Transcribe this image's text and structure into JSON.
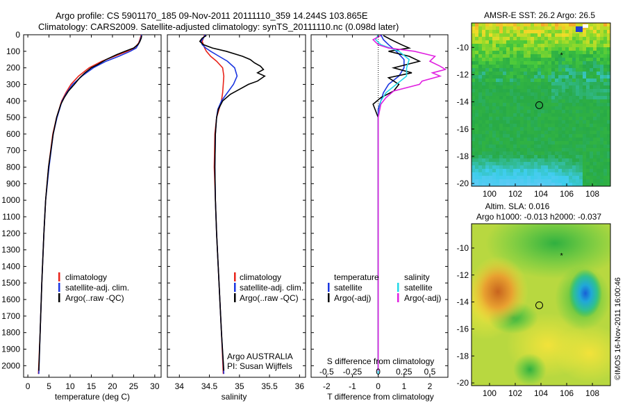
{
  "title": {
    "line1": "Argo profile: CS 5901170_185 09-Nov-2011 20111110_359 14.244S 103.865E",
    "line2": "Climatology: CARS2009. Satellite-adjusted climatology: synTS_20111110.nc (0.098d later)"
  },
  "colors": {
    "climatology": "#e8231a",
    "satellite": "#1a35e0",
    "argo": "#000000",
    "salinity_sat": "#22d8e8",
    "salinity_argo": "#e020e0"
  },
  "chart_data": [
    {
      "type": "line",
      "id": "temperature-profile",
      "xlabel": "temperature (deg C)",
      "ylabel": "",
      "xlim": [
        -1,
        31.5
      ],
      "ylim": [
        2070,
        0
      ],
      "xticks": [
        0,
        5,
        10,
        15,
        20,
        25,
        30
      ],
      "yticks": [
        0,
        100,
        200,
        300,
        400,
        500,
        600,
        700,
        800,
        900,
        1000,
        1100,
        1200,
        1300,
        1400,
        1500,
        1600,
        1700,
        1800,
        1900,
        2000
      ],
      "legend": {
        "placement": "lower-center",
        "entries": [
          "climatology",
          "satellite-adj. clim.",
          "Argo(..raw -QC)"
        ]
      },
      "series": [
        {
          "name": "climatology",
          "depth": [
            0,
            20,
            50,
            80,
            100,
            130,
            160,
            200,
            250,
            300,
            350,
            400,
            500,
            600,
            800,
            1000,
            1200,
            1500,
            1800,
            2050
          ],
          "values": [
            26.8,
            26.6,
            26.2,
            25.2,
            23.5,
            20.5,
            17.5,
            14.5,
            12.0,
            10.2,
            9.0,
            8.0,
            6.8,
            5.9,
            4.9,
            4.2,
            3.8,
            3.3,
            2.9,
            2.5
          ]
        },
        {
          "name": "satellite-adj. clim.",
          "depth": [
            0,
            20,
            50,
            80,
            100,
            130,
            160,
            200,
            250,
            300,
            350,
            400,
            500,
            600,
            800,
            1000,
            1200,
            1500,
            1800,
            2050
          ],
          "values": [
            26.9,
            26.7,
            26.3,
            25.6,
            24.2,
            21.5,
            18.5,
            15.5,
            12.8,
            10.6,
            9.2,
            8.1,
            6.9,
            6.0,
            5.0,
            4.2,
            3.8,
            3.3,
            2.9,
            2.6
          ]
        },
        {
          "name": "Argo(..raw -QC)",
          "depth": [
            5,
            20,
            40,
            60,
            80,
            100,
            120,
            150,
            180,
            200,
            230,
            260,
            300,
            340,
            380,
            420,
            500,
            600,
            800,
            1000,
            1200,
            1500,
            1800,
            2030
          ],
          "values": [
            26.9,
            26.8,
            26.5,
            26.0,
            25.0,
            23.0,
            21.0,
            18.5,
            16.5,
            15.0,
            13.5,
            12.3,
            11.0,
            9.6,
            8.6,
            7.8,
            6.8,
            6.0,
            4.9,
            4.2,
            3.8,
            3.3,
            2.9,
            2.6
          ]
        }
      ]
    },
    {
      "type": "line",
      "id": "salinity-profile",
      "xlabel": "salinity",
      "ylabel": "",
      "xlim": [
        33.8,
        36.1
      ],
      "ylim": [
        2070,
        0
      ],
      "xticks": [
        34,
        34.5,
        35,
        35.5,
        36
      ],
      "legend": {
        "placement": "lower-center",
        "entries": [
          "climatology",
          "satellite-adj. clim.",
          "Argo(..raw -QC)"
        ]
      },
      "annotations": [
        "Argo AUSTRALIA",
        "PI: Susan Wijffels"
      ],
      "series": [
        {
          "name": "climatology",
          "depth": [
            0,
            20,
            40,
            60,
            80,
            100,
            130,
            160,
            200,
            250,
            300,
            350,
            400,
            450,
            500,
            600,
            800,
            1000,
            1200,
            1500,
            1800,
            2050
          ],
          "values": [
            34.42,
            34.4,
            34.38,
            34.4,
            34.42,
            34.45,
            34.52,
            34.62,
            34.72,
            34.74,
            34.73,
            34.72,
            34.7,
            34.66,
            34.62,
            34.59,
            34.58,
            34.6,
            34.62,
            34.66,
            34.7,
            34.73
          ]
        },
        {
          "name": "satellite-adj. clim.",
          "depth": [
            0,
            20,
            40,
            60,
            80,
            100,
            130,
            160,
            200,
            250,
            300,
            350,
            400,
            450,
            500,
            600,
            800,
            1000,
            1200,
            1500,
            1800,
            2050
          ],
          "values": [
            34.43,
            34.4,
            34.36,
            34.38,
            34.44,
            34.52,
            34.66,
            34.8,
            34.92,
            34.96,
            34.9,
            34.8,
            34.7,
            34.64,
            34.62,
            34.6,
            34.59,
            34.6,
            34.62,
            34.66,
            34.7,
            34.74
          ]
        },
        {
          "name": "Argo(..raw -QC)",
          "depth": [
            5,
            20,
            40,
            60,
            80,
            100,
            130,
            150,
            170,
            190,
            210,
            230,
            250,
            280,
            300,
            330,
            360,
            400,
            450,
            500,
            600,
            800,
            1000,
            1200,
            1500,
            1800,
            2030
          ],
          "values": [
            34.45,
            34.38,
            34.34,
            34.4,
            34.55,
            34.78,
            35.05,
            35.18,
            35.25,
            35.35,
            35.4,
            35.3,
            35.42,
            35.3,
            35.15,
            35.0,
            34.85,
            34.72,
            34.65,
            34.62,
            34.6,
            34.59,
            34.6,
            34.62,
            34.66,
            34.7,
            34.74
          ]
        }
      ]
    },
    {
      "type": "line",
      "id": "difference-profile",
      "xlabel": "T difference from climatology",
      "top_axis_label": "S difference from climatology",
      "xlim": [
        -2.6,
        2.7
      ],
      "ylim": [
        2070,
        0
      ],
      "xticks": [
        -2,
        -1,
        0,
        1,
        2
      ],
      "top_ticks": [
        {
          "v": -2,
          "label": "-0.5"
        },
        {
          "v": -1,
          "label": "-0.25"
        },
        {
          "v": 0,
          "label": "0"
        },
        {
          "v": 1,
          "label": "0.25"
        },
        {
          "v": 2,
          "label": "0.5"
        }
      ],
      "legend": {
        "placement": "lower-center",
        "headers": [
          "temperature",
          "salinity"
        ],
        "entries": [
          "satellite",
          "Argo(-adj)",
          "satellite",
          "Argo(-adj)"
        ]
      },
      "series": [
        {
          "name": "temperature satellite",
          "depth": [
            0,
            30,
            60,
            100,
            150,
            200,
            250,
            300,
            350,
            400,
            450,
            500,
            700,
            1000,
            1400,
            1800,
            2050
          ],
          "values": [
            0.1,
            0.2,
            0.4,
            0.7,
            1.0,
            1.0,
            0.8,
            0.4,
            0.2,
            0.1,
            0.0,
            0.0,
            0.0,
            0.0,
            0.0,
            0.0,
            0.0
          ]
        },
        {
          "name": "temperature Argo(-adj)",
          "depth": [
            5,
            30,
            60,
            80,
            100,
            130,
            160,
            200,
            230,
            260,
            300,
            340,
            380,
            420,
            500,
            700,
            1000,
            1400,
            1800,
            2030
          ],
          "values": [
            0.2,
            0.5,
            0.9,
            1.2,
            0.4,
            1.2,
            1.6,
            0.6,
            1.3,
            0.4,
            0.8,
            0.6,
            0.1,
            -0.2,
            0.0,
            0.0,
            0.0,
            0.0,
            0.0,
            0.0
          ]
        },
        {
          "name": "salinity satellite",
          "depth": [
            0,
            30,
            60,
            100,
            150,
            200,
            250,
            300,
            350,
            400,
            500,
            700,
            1000,
            1400,
            1800,
            2050
          ],
          "values": [
            0.0,
            -0.1,
            0.1,
            0.8,
            1.2,
            1.1,
            1.1,
            0.7,
            0.3,
            0.1,
            0.0,
            0.0,
            0.0,
            0.0,
            0.0,
            0.0
          ]
        },
        {
          "name": "salinity Argo(-adj)",
          "depth": [
            5,
            30,
            60,
            80,
            100,
            130,
            160,
            190,
            210,
            230,
            250,
            280,
            300,
            340,
            380,
            420,
            500,
            700,
            1000,
            1400,
            1800,
            2030
          ],
          "values": [
            0.1,
            -0.2,
            0.0,
            0.4,
            1.4,
            2.2,
            2.0,
            2.4,
            2.6,
            2.1,
            2.4,
            1.7,
            1.6,
            0.6,
            0.3,
            0.1,
            0.0,
            0.0,
            0.0,
            0.0,
            0.0,
            0.0
          ]
        }
      ]
    },
    {
      "type": "heatmap",
      "id": "sst-map",
      "title": "AMSR-E SST: 26.2  Argo: 26.5",
      "xlim": [
        98.6,
        109.4
      ],
      "ylim": [
        -20.2,
        -8.2
      ],
      "xticks": [
        100,
        102,
        104,
        106,
        108
      ],
      "yticks": [
        -10,
        -12,
        -14,
        -16,
        -18,
        -20
      ],
      "marker": {
        "lon": 103.865,
        "lat": -14.244
      },
      "trajectory": {
        "lon": 105.6,
        "lat": -10.5
      }
    },
    {
      "type": "heatmap",
      "id": "sla-map",
      "title": "Altim. SLA: 0.016",
      "subtitle": "Argo h1000: -0.013 h2000: -0.037",
      "xlim": [
        98.6,
        109.4
      ],
      "ylim": [
        -20.2,
        -8.2
      ],
      "xticks": [
        100,
        102,
        104,
        106,
        108
      ],
      "yticks": [
        -10,
        -12,
        -14,
        -16,
        -18,
        -20
      ],
      "marker": {
        "lon": 103.865,
        "lat": -14.244
      },
      "trajectory": {
        "lon": 105.6,
        "lat": -10.5
      }
    }
  ],
  "credit": "©IMOS 16-Nov-2011 16:00:46"
}
